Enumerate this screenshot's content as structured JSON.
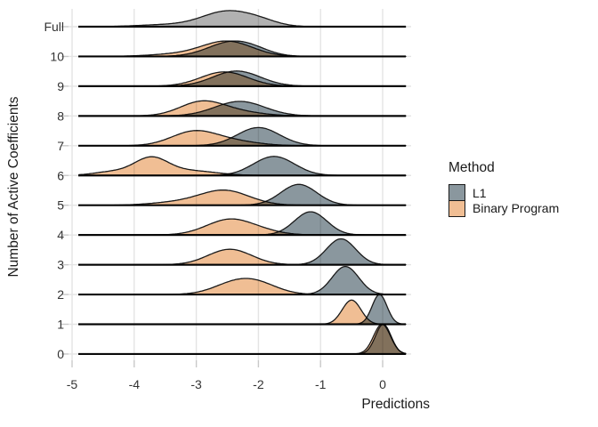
{
  "legend": {
    "title": "Method",
    "items": [
      {
        "label": "L1",
        "color": "#8A979E"
      },
      {
        "label": "Binary Program",
        "color": "#F0BE94"
      }
    ]
  },
  "colors": {
    "l1": "#8A979E",
    "binary_program": "#F0BE94",
    "full_model": "#B1B1B1",
    "outline": "#1A1A1A",
    "gridline": "#E4E4E4",
    "tick": "#C9C9C9",
    "axis_text": "#333333"
  },
  "chart_data": {
    "type": "area",
    "subtype": "ridgeline",
    "x_label": "Predictions",
    "y_label": "Number of Active Coefficients",
    "x_range": [
      -5,
      0.4
    ],
    "x_ticks": [
      -5,
      -4,
      -3,
      -2,
      -1,
      0
    ],
    "x_tick_labels": [
      "-5",
      "-4",
      "-3",
      "-2",
      "-1",
      "0"
    ],
    "grid": true,
    "legend_position": "right",
    "rows": [
      {
        "label": "Full",
        "series": [
          {
            "method": "Full model",
            "color": "#B1B1B1",
            "peak": -2.52,
            "peak_rel": 0.54,
            "components": [
              [
                -2.52,
                0.38,
                1.0
              ],
              [
                -1.98,
                0.3,
                0.35
              ],
              [
                -3.4,
                0.5,
                0.15
              ]
            ]
          }
        ]
      },
      {
        "label": "10",
        "series": [
          {
            "method": "Binary Program",
            "color": "#F0BE94",
            "peak": -2.5,
            "peak_rel": 0.52,
            "components": [
              [
                -2.5,
                0.4,
                1.0
              ],
              [
                -3.3,
                0.45,
                0.15
              ]
            ]
          },
          {
            "method": "L1",
            "color": "#8A979E",
            "peak": -2.43,
            "peak_rel": 0.52,
            "components": [
              [
                -2.43,
                0.38,
                1.0
              ],
              [
                -2.05,
                0.28,
                0.18
              ]
            ]
          }
        ]
      },
      {
        "label": "9",
        "series": [
          {
            "method": "Binary Program",
            "color": "#F0BE94",
            "peak": -2.55,
            "peak_rel": 0.48,
            "components": [
              [
                -2.55,
                0.38,
                1.0
              ]
            ]
          },
          {
            "method": "L1",
            "color": "#8A979E",
            "peak": -2.35,
            "peak_rel": 0.51,
            "components": [
              [
                -2.35,
                0.38,
                1.0
              ]
            ]
          }
        ]
      },
      {
        "label": "8",
        "series": [
          {
            "method": "Binary Program",
            "color": "#F0BE94",
            "peak": -2.92,
            "peak_rel": 0.51,
            "components": [
              [
                -2.92,
                0.35,
                1.0
              ],
              [
                -2.35,
                0.4,
                0.3
              ]
            ]
          },
          {
            "method": "L1",
            "color": "#8A979E",
            "peak": -2.3,
            "peak_rel": 0.49,
            "components": [
              [
                -2.3,
                0.4,
                1.0
              ]
            ]
          }
        ]
      },
      {
        "label": "7",
        "series": [
          {
            "method": "Binary Program",
            "color": "#F0BE94",
            "peak": -3.05,
            "peak_rel": 0.51,
            "components": [
              [
                -3.05,
                0.36,
                1.0
              ],
              [
                -2.45,
                0.42,
                0.35
              ]
            ]
          },
          {
            "method": "L1",
            "color": "#8A979E",
            "peak": -2.0,
            "peak_rel": 0.61,
            "components": [
              [
                -2.0,
                0.34,
                1.0
              ]
            ]
          }
        ]
      },
      {
        "label": "6",
        "series": [
          {
            "method": "Binary Program",
            "color": "#F0BE94",
            "peak": -3.73,
            "peak_rel": 0.63,
            "components": [
              [
                -3.73,
                0.27,
                1.0
              ],
              [
                -4.35,
                0.3,
                0.22
              ],
              [
                -3.1,
                0.42,
                0.28
              ]
            ]
          },
          {
            "method": "L1",
            "color": "#8A979E",
            "peak": -1.75,
            "peak_rel": 0.64,
            "components": [
              [
                -1.75,
                0.33,
                1.0
              ]
            ]
          }
        ]
      },
      {
        "label": "5",
        "series": [
          {
            "method": "Binary Program",
            "color": "#F0BE94",
            "peak": -2.55,
            "peak_rel": 0.51,
            "components": [
              [
                -2.55,
                0.4,
                1.0
              ],
              [
                -3.35,
                0.4,
                0.18
              ]
            ]
          },
          {
            "method": "L1",
            "color": "#8A979E",
            "peak": -1.35,
            "peak_rel": 0.7,
            "components": [
              [
                -1.35,
                0.29,
                1.0
              ]
            ]
          }
        ]
      },
      {
        "label": "4",
        "series": [
          {
            "method": "Binary Program",
            "color": "#F0BE94",
            "peak": -2.45,
            "peak_rel": 0.54,
            "components": [
              [
                -2.45,
                0.38,
                1.0
              ],
              [
                -1.85,
                0.3,
                0.12
              ]
            ]
          },
          {
            "method": "L1",
            "color": "#8A979E",
            "peak": -1.16,
            "peak_rel": 0.78,
            "components": [
              [
                -1.16,
                0.26,
                1.0
              ]
            ]
          }
        ]
      },
      {
        "label": "3",
        "series": [
          {
            "method": "Binary Program",
            "color": "#F0BE94",
            "peak": -2.46,
            "peak_rel": 0.52,
            "components": [
              [
                -2.46,
                0.35,
                1.0
              ]
            ]
          },
          {
            "method": "L1",
            "color": "#8A979E",
            "peak": -0.67,
            "peak_rel": 0.87,
            "components": [
              [
                -0.67,
                0.235,
                1.0
              ]
            ]
          }
        ]
      },
      {
        "label": "2",
        "series": [
          {
            "method": "Binary Program",
            "color": "#F0BE94",
            "peak": -2.15,
            "peak_rel": 0.54,
            "components": [
              [
                -2.42,
                0.34,
                0.9
              ],
              [
                -2.02,
                0.34,
                1.0
              ]
            ]
          },
          {
            "method": "L1",
            "color": "#8A979E",
            "peak": -0.6,
            "peak_rel": 0.94,
            "components": [
              [
                -0.6,
                0.215,
                1.0
              ]
            ]
          }
        ]
      },
      {
        "label": "1",
        "series": [
          {
            "method": "Binary Program",
            "color": "#F0BE94",
            "peak": -0.5,
            "peak_rel": 0.81,
            "components": [
              [
                -0.5,
                0.15,
                1.0
              ]
            ]
          },
          {
            "method": "L1",
            "color": "#8A979E",
            "peak": -0.05,
            "peak_rel": 1.0,
            "components": [
              [
                -0.05,
                0.12,
                1.0
              ]
            ]
          }
        ]
      },
      {
        "label": "0",
        "series": [
          {
            "method": "Binary Program",
            "color": "#F0BE94",
            "peak": -0.01,
            "peak_rel": 1.0,
            "components": [
              [
                -0.01,
                0.135,
                1.0
              ]
            ]
          },
          {
            "method": "L1",
            "color": "#8A979E",
            "peak": 0.01,
            "peak_rel": 1.0,
            "components": [
              [
                0.01,
                0.125,
                1.0
              ]
            ]
          }
        ]
      }
    ]
  }
}
